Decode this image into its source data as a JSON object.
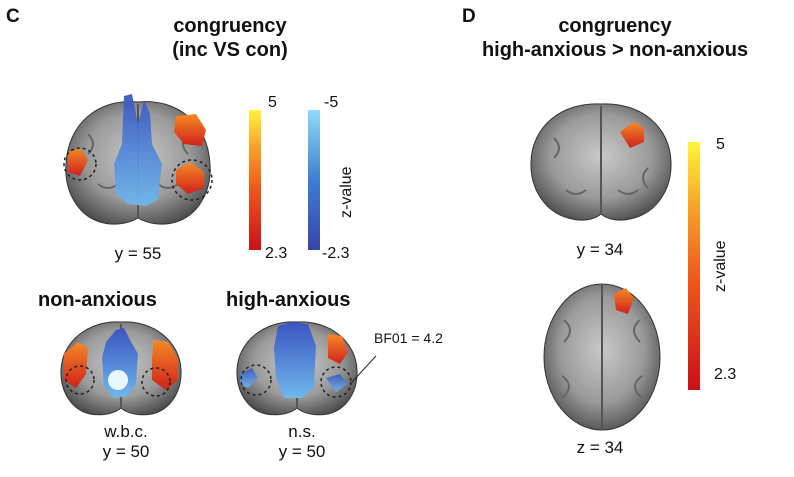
{
  "panel_c": {
    "letter": "C",
    "title_line1": "congruency",
    "title_line2": "(inc VS con)",
    "slice_main": "y = 55",
    "colorbar_warm": {
      "max": "5",
      "min": "2.3"
    },
    "colorbar_cool": {
      "max": "-5",
      "min": "-2.3"
    },
    "colorbar_axis": "z-value",
    "non_anxious": {
      "title": "non-anxious",
      "note": "w.b.c.",
      "slice": "y = 50"
    },
    "high_anxious": {
      "title": "high-anxious",
      "note": "n.s.",
      "slice": "y = 50",
      "annotation": "BF01 = 4.2"
    }
  },
  "panel_d": {
    "letter": "D",
    "title_line1": "congruency",
    "title_line2": "high-anxious > non-anxious",
    "slice_top": "y = 34",
    "slice_bottom": "z = 34",
    "colorbar": {
      "max": "5",
      "min": "2.3"
    },
    "colorbar_axis": "z-value"
  },
  "colors": {
    "warm_low": "#c8101a",
    "warm_mid": "#f07020",
    "warm_high": "#fff23a",
    "cool_low": "#3a4fb0",
    "cool_high": "#8fd8f5"
  }
}
